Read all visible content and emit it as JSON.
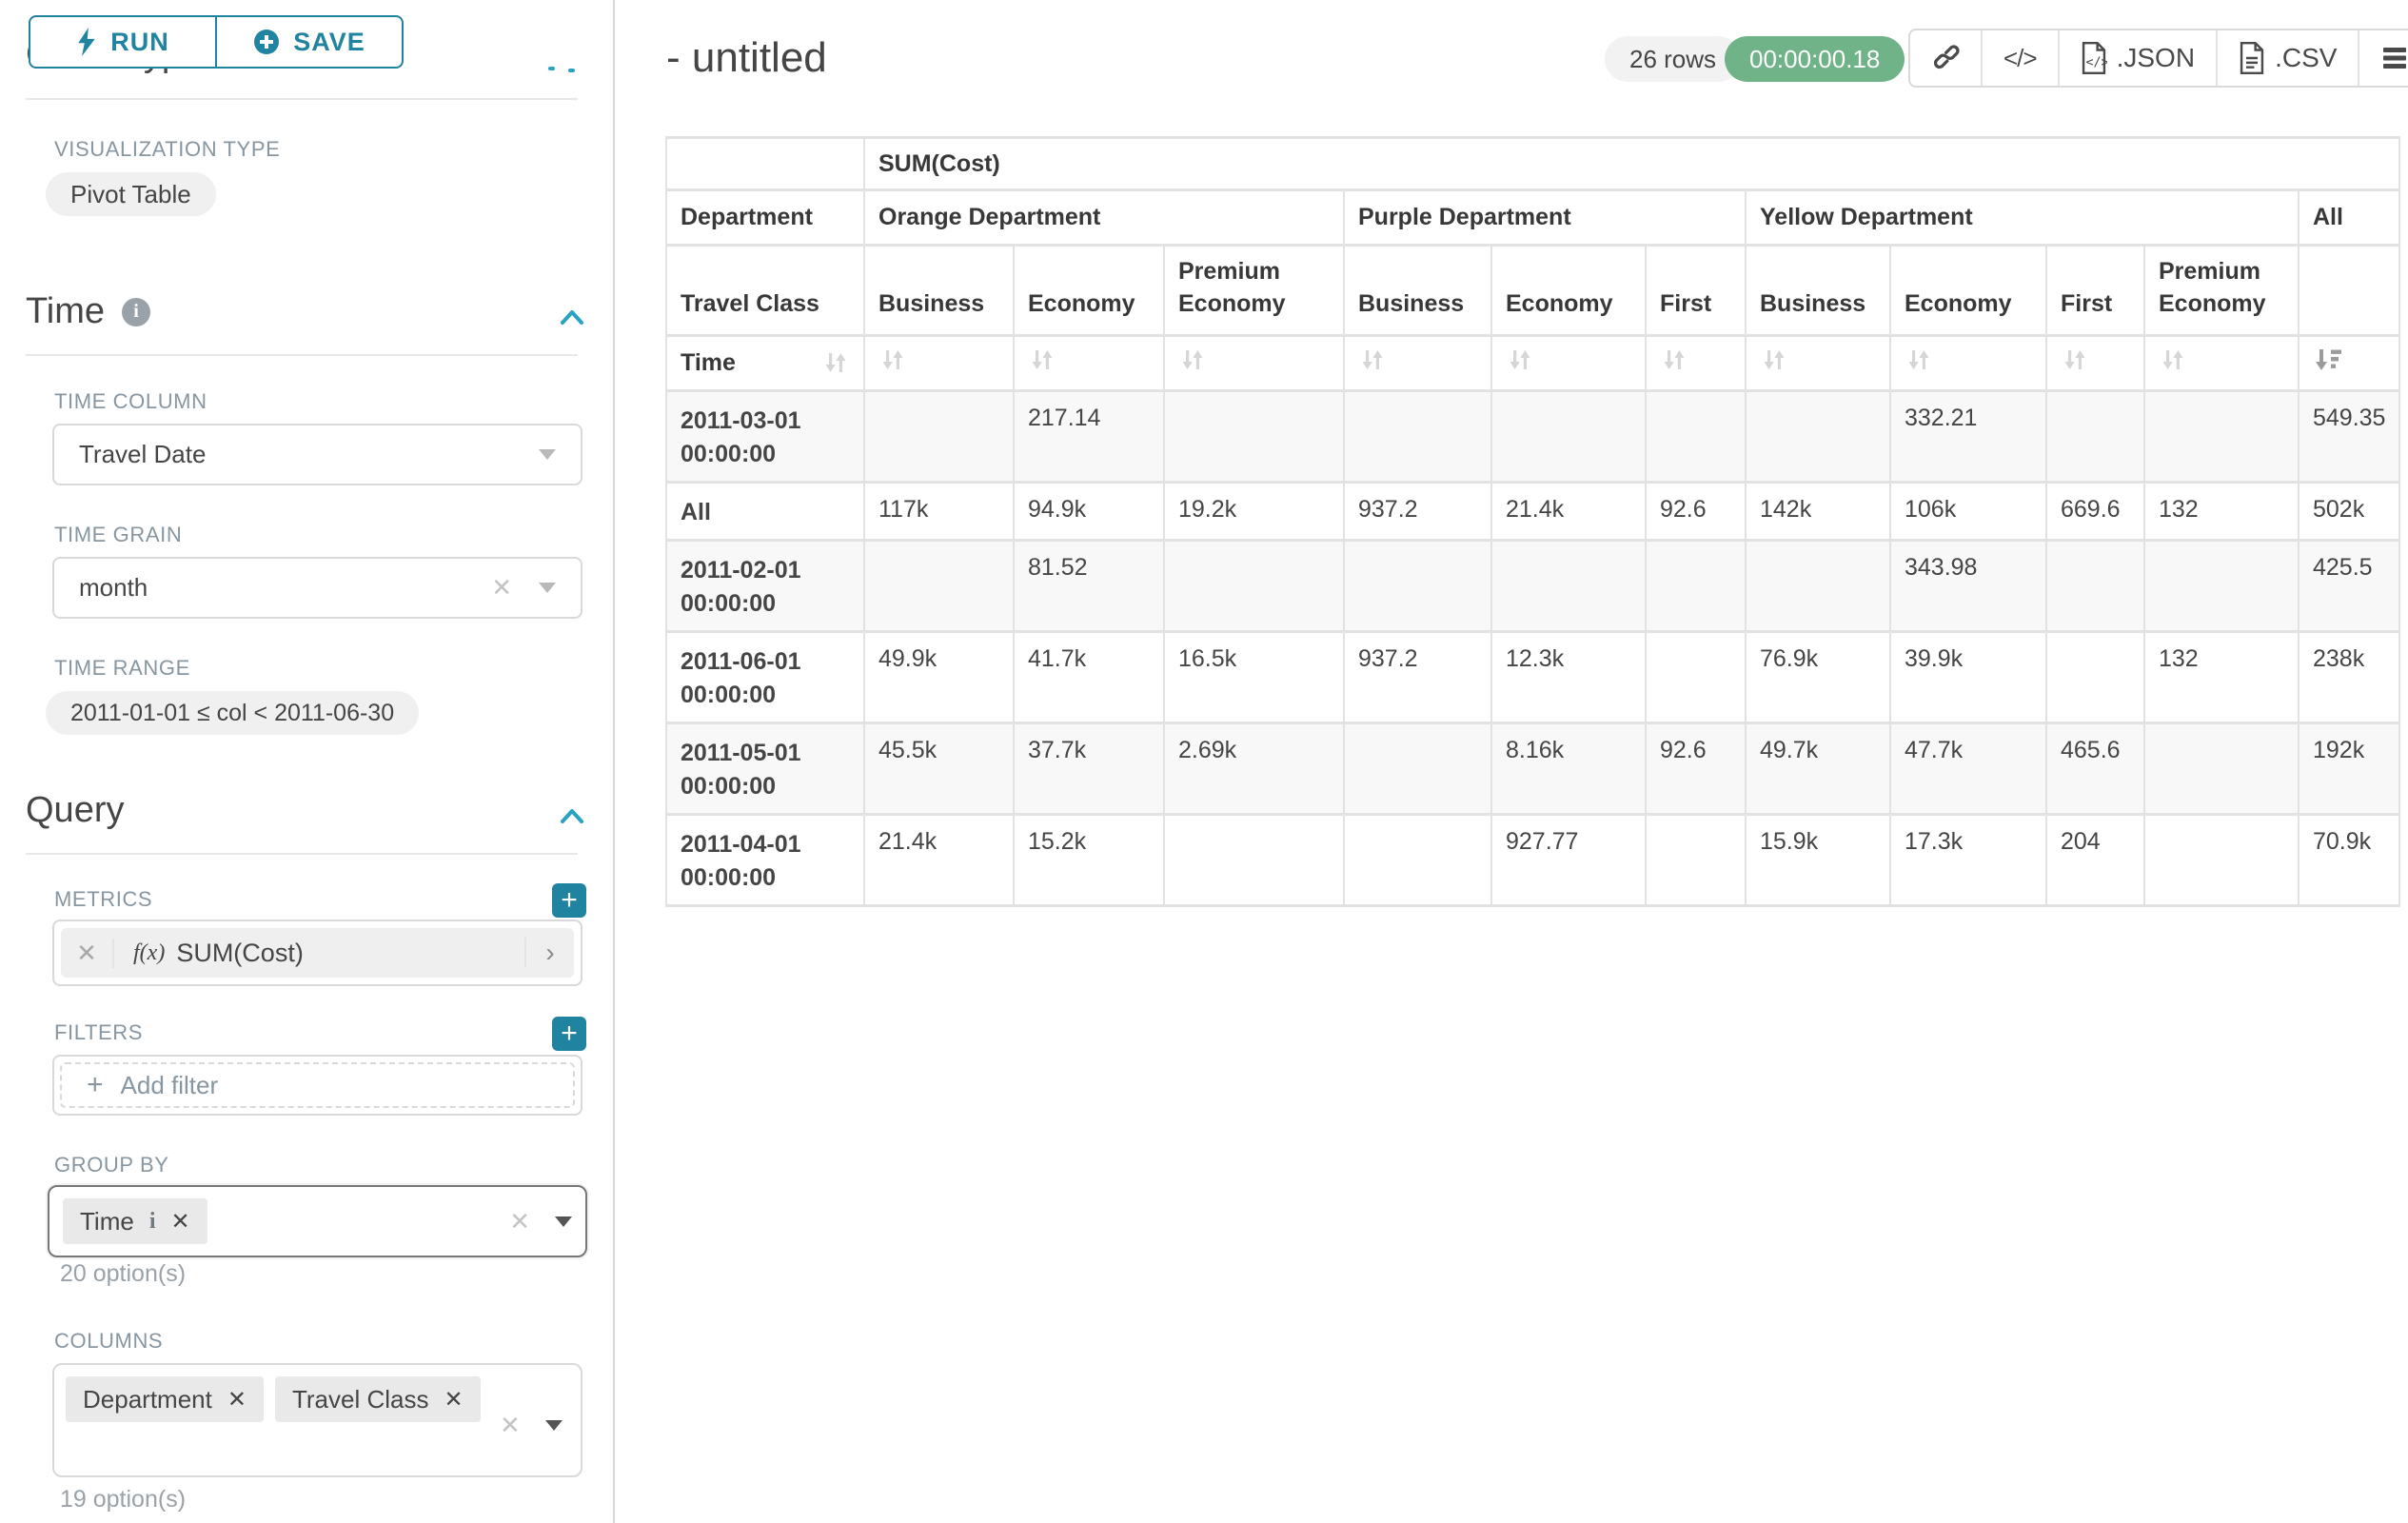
{
  "toolbar": {
    "run": "RUN",
    "save": "SAVE"
  },
  "sidebar": {
    "chart_type": {
      "title": "Chart Type",
      "viz_label": "VISUALIZATION TYPE",
      "viz_value": "Pivot Table"
    },
    "time": {
      "title": "Time",
      "col_label": "TIME COLUMN",
      "col_value": "Travel Date",
      "grain_label": "TIME GRAIN",
      "grain_value": "month",
      "range_label": "TIME RANGE",
      "range_value": "2011-01-01 ≤ col < 2011-06-30"
    },
    "query": {
      "title": "Query",
      "metrics_label": "METRICS",
      "metric_fx": "f(x)",
      "metric_value": "SUM(Cost)",
      "filters_label": "FILTERS",
      "add_filter": "Add filter",
      "groupby_label": "GROUP BY",
      "groupby_value": "Time",
      "groupby_options": "20 option(s)",
      "columns_label": "COLUMNS",
      "columns_values": [
        "Department",
        "Travel Class"
      ],
      "columns_options": "19 option(s)"
    }
  },
  "header": {
    "title": "- untitled",
    "rows_badge": "26 rows",
    "timer": "00:00:00.18",
    "export_json": ".JSON",
    "export_csv": ".CSV"
  },
  "pivot": {
    "metric": "SUM(Cost)",
    "row_header": "Department",
    "class_header": "Travel Class",
    "time_header": "Time",
    "all_header": "All",
    "groups": [
      {
        "name": "Orange Department",
        "cols": [
          "Business",
          "Economy",
          "Premium Economy"
        ]
      },
      {
        "name": "Purple Department",
        "cols": [
          "Business",
          "Economy",
          "First"
        ]
      },
      {
        "name": "Yellow Department",
        "cols": [
          "Business",
          "Economy",
          "First",
          "Premium Economy"
        ]
      }
    ],
    "rows": [
      {
        "label": "2011-03-01 00:00:00",
        "values": [
          "",
          "217.14",
          "",
          "",
          "",
          "",
          "",
          "332.21",
          "",
          "",
          "549.35"
        ]
      },
      {
        "label": "All",
        "values": [
          "117k",
          "94.9k",
          "19.2k",
          "937.2",
          "21.4k",
          "92.6",
          "142k",
          "106k",
          "669.6",
          "132",
          "502k"
        ]
      },
      {
        "label": "2011-02-01 00:00:00",
        "values": [
          "",
          "81.52",
          "",
          "",
          "",
          "",
          "",
          "343.98",
          "",
          "",
          "425.5"
        ]
      },
      {
        "label": "2011-06-01 00:00:00",
        "values": [
          "49.9k",
          "41.7k",
          "16.5k",
          "937.2",
          "12.3k",
          "",
          "76.9k",
          "39.9k",
          "",
          "132",
          "238k"
        ]
      },
      {
        "label": "2011-05-01 00:00:00",
        "values": [
          "45.5k",
          "37.7k",
          "2.69k",
          "",
          "8.16k",
          "92.6",
          "49.7k",
          "47.7k",
          "465.6",
          "",
          "192k"
        ]
      },
      {
        "label": "2011-04-01 00:00:00",
        "values": [
          "21.4k",
          "15.2k",
          "",
          "",
          "927.77",
          "",
          "15.9k",
          "17.3k",
          "204",
          "",
          "70.9k"
        ]
      }
    ]
  }
}
